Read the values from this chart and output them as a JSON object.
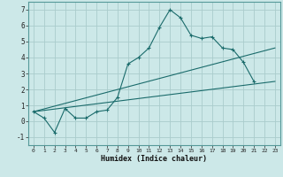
{
  "title": "",
  "xlabel": "Humidex (Indice chaleur)",
  "bg_color": "#cce8e8",
  "grid_color": "#aacccc",
  "line_color": "#1a6b6b",
  "xlim": [
    -0.5,
    23.5
  ],
  "ylim": [
    -1.5,
    7.5
  ],
  "xticks": [
    0,
    1,
    2,
    3,
    4,
    5,
    6,
    7,
    8,
    9,
    10,
    11,
    12,
    13,
    14,
    15,
    16,
    17,
    18,
    19,
    20,
    21,
    22,
    23
  ],
  "yticks": [
    -1,
    0,
    1,
    2,
    3,
    4,
    5,
    6,
    7
  ],
  "main_x": [
    0,
    1,
    2,
    3,
    4,
    5,
    6,
    7,
    8,
    9,
    10,
    11,
    12,
    13,
    14,
    15,
    16,
    17,
    18,
    19,
    20,
    21
  ],
  "main_y": [
    0.6,
    0.2,
    -0.7,
    0.8,
    0.2,
    0.2,
    0.6,
    0.7,
    1.5,
    3.6,
    4.0,
    4.6,
    5.9,
    7.0,
    6.5,
    5.4,
    5.2,
    5.3,
    4.6,
    4.5,
    3.7,
    2.5
  ],
  "line2_x": [
    0,
    23
  ],
  "line2_y": [
    0.6,
    2.5
  ],
  "line3_x": [
    0,
    23
  ],
  "line3_y": [
    0.6,
    4.6
  ]
}
